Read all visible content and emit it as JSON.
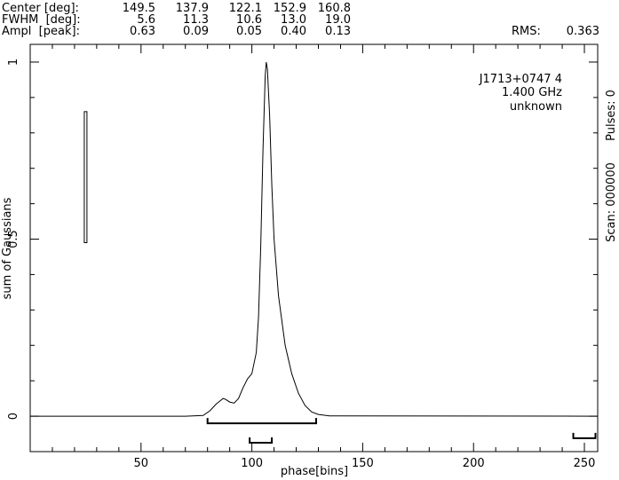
{
  "header": {
    "rows": [
      {
        "label": "Center [deg]:",
        "values": [
          "149.5",
          "137.9",
          "122.1",
          "152.9",
          "160.8"
        ]
      },
      {
        "label": "FWHM  [deg]:",
        "values": [
          "5.6",
          "11.3",
          "10.6",
          "13.0",
          "19.0"
        ]
      },
      {
        "label": "Ampl  [peak]:",
        "values": [
          "0.63",
          "0.09",
          "0.05",
          "0.40",
          "0.13"
        ]
      }
    ],
    "rms_label": "RMS:",
    "rms_value": "0.363"
  },
  "chart_data": {
    "type": "line",
    "xlabel": "phase[bins]",
    "ylabel": "sum of Gaussians",
    "xlim": [
      0,
      256
    ],
    "ylim": [
      -0.1,
      1.05
    ],
    "x_ticks": [
      50,
      100,
      150,
      200,
      250
    ],
    "y_ticks": [
      0,
      0.5,
      1
    ],
    "y_tick_labels": [
      "0",
      "0.5",
      "1"
    ],
    "annotations": [
      "J1713+0747 4",
      "1.400 GHz",
      "unknown"
    ],
    "right_labels": [
      "Pulses: 0",
      "Scan: 000000"
    ],
    "series": [
      {
        "x": [
          0,
          70,
          78,
          81,
          84,
          86,
          87,
          88,
          90,
          92,
          94,
          96,
          98,
          100,
          102,
          103,
          104,
          105,
          106,
          106.5,
          107,
          108,
          109,
          110,
          112,
          115,
          118,
          121,
          124,
          127,
          130,
          135,
          256
        ],
        "y": [
          0,
          0,
          0.002,
          0.015,
          0.035,
          0.045,
          0.05,
          0.048,
          0.04,
          0.037,
          0.05,
          0.08,
          0.105,
          0.12,
          0.18,
          0.28,
          0.48,
          0.75,
          0.96,
          1.0,
          0.98,
          0.85,
          0.65,
          0.5,
          0.34,
          0.2,
          0.12,
          0.065,
          0.03,
          0.012,
          0.005,
          0.001,
          0
        ]
      }
    ],
    "error_bar": {
      "x": 25,
      "y_low": 0.49,
      "y_high": 0.86
    },
    "brackets": [
      {
        "x1": 80,
        "x2": 129,
        "y": -0.02
      },
      {
        "x1": 99,
        "x2": 109,
        "y": -0.075
      },
      {
        "x1": 245,
        "x2": 255,
        "y": -0.062
      }
    ]
  }
}
